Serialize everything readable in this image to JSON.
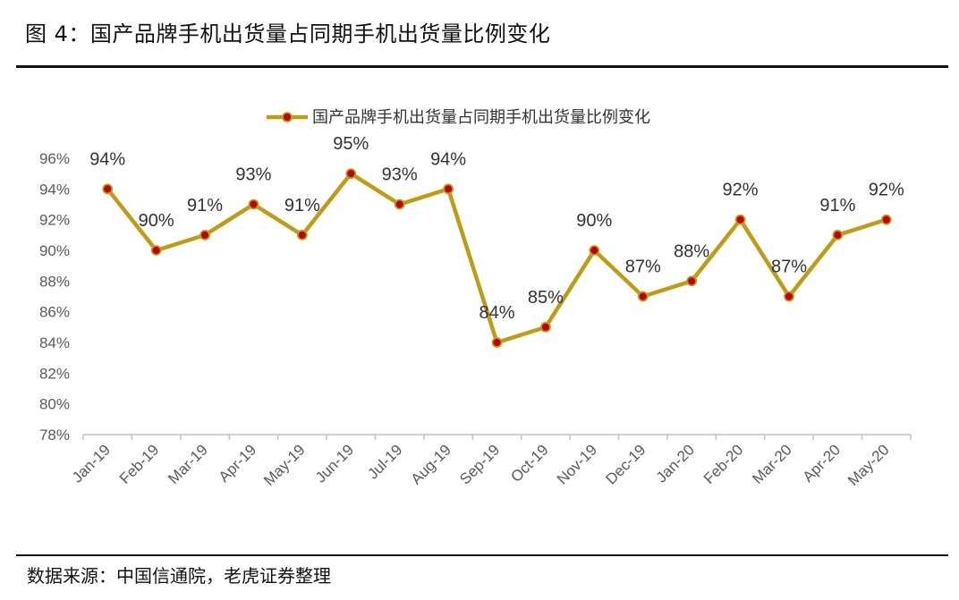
{
  "figure": {
    "title": "图 4：国产品牌手机出货量占同期手机出货量比例变化",
    "source": "数据来源：中国信通院，老虎证券整理"
  },
  "chart_data": {
    "type": "line",
    "title": "",
    "xlabel": "",
    "ylabel": "",
    "categories": [
      "Jan-19",
      "Feb-19",
      "Mar-19",
      "Apr-19",
      "May-19",
      "Jun-19",
      "Jul-19",
      "Aug-19",
      "Sep-19",
      "Oct-19",
      "Nov-19",
      "Dec-19",
      "Jan-20",
      "Feb-20",
      "Mar-20",
      "Apr-20",
      "May-20"
    ],
    "series": [
      {
        "name": "国产品牌手机出货量占同期手机出货量比例变化",
        "values": [
          94,
          90,
          91,
          93,
          91,
          95,
          93,
          94,
          84,
          85,
          90,
          87,
          88,
          92,
          87,
          91,
          92
        ],
        "labels": [
          "94%",
          "90%",
          "91%",
          "93%",
          "91%",
          "95%",
          "93%",
          "94%",
          "84%",
          "85%",
          "90%",
          "87%",
          "88%",
          "92%",
          "87%",
          "91%",
          "92%"
        ]
      }
    ],
    "ylim": [
      78,
      96
    ],
    "yticks": [
      "78%",
      "80%",
      "82%",
      "84%",
      "86%",
      "88%",
      "90%",
      "92%",
      "94%",
      "96%"
    ],
    "legend_position": "top-center",
    "grid": false,
    "colors": {
      "line": "#C09B14",
      "marker_fill": "#C00000",
      "marker_edge": "#C09B14",
      "axis": "#BFBFBF"
    }
  }
}
